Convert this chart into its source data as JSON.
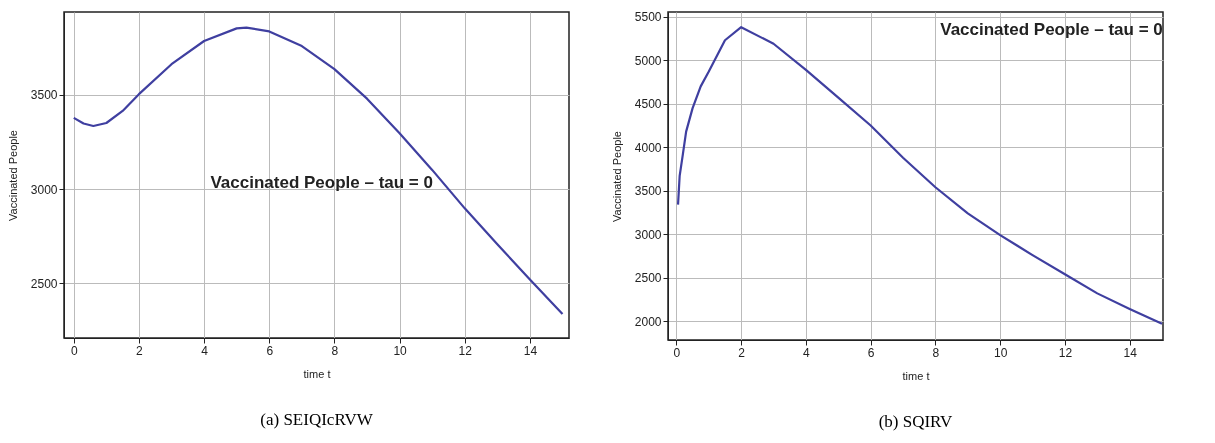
{
  "chart_data": [
    {
      "type": "line",
      "xlabel": "time t",
      "ylabel": "Vaccinated People",
      "annotations": [
        "Vaccinated People – tau = 0",
        "(a)  SEIQIcRVW"
      ],
      "x": [
        0,
        0.3,
        0.6,
        1,
        1.5,
        2,
        3,
        4,
        5,
        5.3,
        6,
        7,
        8,
        9,
        10,
        11,
        12,
        13,
        14,
        15
      ],
      "series": [
        {
          "color": "#3f3fa0",
          "values": [
            3378,
            3348,
            3335,
            3351,
            3415,
            3504,
            3663,
            3786,
            3853,
            3857,
            3837,
            3759,
            3637,
            3480,
            3296,
            3102,
            2898,
            2708,
            2520,
            2337
          ]
        }
      ],
      "xlim": [
        -0.3,
        15.2
      ],
      "ylim": [
        2210,
        3940
      ],
      "xticks": [
        0,
        2,
        4,
        6,
        8,
        10,
        12,
        14
      ],
      "yticks": [
        2500,
        3000,
        3500
      ],
      "grid": true
    },
    {
      "type": "line",
      "xlabel": "time t",
      "ylabel": "Vaccinated People",
      "annotations": [
        "Vaccinated People – tau = 0",
        "(b)  SQIRV"
      ],
      "x": [
        0.05,
        0.1,
        0.2,
        0.3,
        0.5,
        0.75,
        1,
        1.5,
        2,
        3,
        4,
        5,
        6,
        7,
        8,
        9,
        10,
        11,
        12,
        13,
        14,
        15
      ],
      "series": [
        {
          "color": "#3f3fa0",
          "values": [
            3340,
            3670,
            3920,
            4180,
            4450,
            4700,
            4870,
            5230,
            5380,
            5190,
            4890,
            4570,
            4250,
            3880,
            3540,
            3240,
            2990,
            2760,
            2540,
            2320,
            2140,
            1970
          ]
        }
      ],
      "xlim": [
        -0.26,
        15.03
      ],
      "ylim": [
        1784,
        5555
      ],
      "xticks": [
        0,
        2,
        4,
        6,
        8,
        10,
        12,
        14
      ],
      "yticks": [
        2000,
        2500,
        3000,
        3500,
        4000,
        4500,
        5000,
        5500
      ],
      "grid": true
    }
  ]
}
